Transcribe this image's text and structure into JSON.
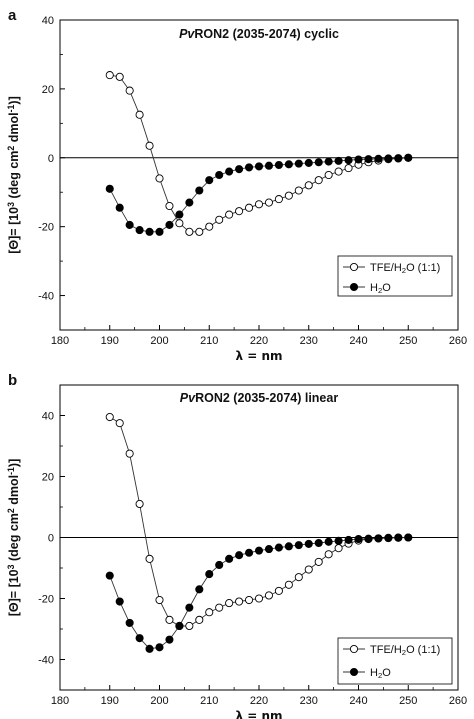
{
  "chart_data": [
    {
      "type": "line",
      "panel": "a",
      "title_italic": "Pv",
      "title_rest": "RON2 (2035-2074) cyclic",
      "xlabel": "λ = nm",
      "ylabel": "[Θ]= [10³ (deg cm² dmol⁻¹)]",
      "xlim": [
        180,
        260
      ],
      "ylim": [
        -50,
        40
      ],
      "xticks": [
        180,
        190,
        200,
        210,
        220,
        230,
        240,
        250,
        260
      ],
      "yticks": [
        -40,
        -20,
        0,
        20,
        40
      ],
      "zero_line": true,
      "legend_position": "bottom-right",
      "series": [
        {
          "name": "TFE/H₂O (1:1)",
          "marker": "open-circle",
          "x": [
            190,
            192,
            194,
            196,
            198,
            200,
            202,
            204,
            206,
            208,
            210,
            212,
            214,
            216,
            218,
            220,
            222,
            224,
            226,
            228,
            230,
            232,
            234,
            236,
            238,
            240,
            242,
            244,
            246,
            248,
            250
          ],
          "y": [
            24,
            23.5,
            19.5,
            12.5,
            3.5,
            -6,
            -14,
            -19,
            -21.5,
            -21.5,
            -20,
            -18,
            -16.5,
            -15.5,
            -14.5,
            -13.5,
            -13,
            -12,
            -11,
            -9.5,
            -8,
            -6.5,
            -5,
            -4,
            -3,
            -2,
            -1.3,
            -0.8,
            -0.4,
            -0.2,
            0
          ]
        },
        {
          "name": "H₂O",
          "marker": "filled-circle",
          "x": [
            190,
            192,
            194,
            196,
            198,
            200,
            202,
            204,
            206,
            208,
            210,
            212,
            214,
            216,
            218,
            220,
            222,
            224,
            226,
            228,
            230,
            232,
            234,
            236,
            238,
            240,
            242,
            244,
            246,
            248,
            250
          ],
          "y": [
            -9,
            -14.5,
            -19.5,
            -21,
            -21.5,
            -21.5,
            -19.5,
            -16.5,
            -13,
            -9.5,
            -6.5,
            -5,
            -4,
            -3.3,
            -2.8,
            -2.5,
            -2.3,
            -2.1,
            -1.9,
            -1.7,
            -1.5,
            -1.3,
            -1.1,
            -0.9,
            -0.7,
            -0.5,
            -0.4,
            -0.3,
            -0.2,
            -0.1,
            0
          ]
        }
      ]
    },
    {
      "type": "line",
      "panel": "b",
      "title_italic": "Pv",
      "title_rest": "RON2 (2035-2074) linear",
      "xlabel": "λ = nm",
      "ylabel": "[Θ]= [10³ (deg cm² dmol⁻¹)]",
      "xlim": [
        180,
        260
      ],
      "ylim": [
        -50,
        50
      ],
      "xticks": [
        180,
        190,
        200,
        210,
        220,
        230,
        240,
        250,
        260
      ],
      "yticks": [
        -40,
        -20,
        0,
        20,
        40
      ],
      "zero_line": true,
      "legend_position": "bottom-right",
      "series": [
        {
          "name": "TFE/H₂O (1:1)",
          "marker": "open-circle",
          "x": [
            190,
            192,
            194,
            196,
            198,
            200,
            202,
            204,
            206,
            208,
            210,
            212,
            214,
            216,
            218,
            220,
            222,
            224,
            226,
            228,
            230,
            232,
            234,
            236,
            238,
            240,
            242,
            244,
            246,
            248,
            250
          ],
          "y": [
            39.5,
            37.5,
            27.5,
            11,
            -7,
            -20.5,
            -27,
            -29,
            -29,
            -27,
            -24.5,
            -23,
            -21.5,
            -21,
            -20.5,
            -20,
            -19,
            -17.5,
            -15.5,
            -13,
            -10.5,
            -8,
            -5.5,
            -3.5,
            -2,
            -1,
            -0.5,
            -0.3,
            -0.1,
            0,
            0
          ]
        },
        {
          "name": "H₂O",
          "marker": "filled-circle",
          "x": [
            190,
            192,
            194,
            196,
            198,
            200,
            202,
            204,
            206,
            208,
            210,
            212,
            214,
            216,
            218,
            220,
            222,
            224,
            226,
            228,
            230,
            232,
            234,
            236,
            238,
            240,
            242,
            244,
            246,
            248,
            250
          ],
          "y": [
            -12.5,
            -21,
            -28,
            -33,
            -36.5,
            -36,
            -33.5,
            -29,
            -23,
            -17,
            -12,
            -9,
            -7,
            -5.8,
            -5,
            -4.3,
            -3.8,
            -3.3,
            -2.9,
            -2.5,
            -2.1,
            -1.8,
            -1.4,
            -1.1,
            -0.8,
            -0.5,
            -0.4,
            -0.3,
            -0.2,
            -0.1,
            0
          ]
        }
      ]
    }
  ]
}
